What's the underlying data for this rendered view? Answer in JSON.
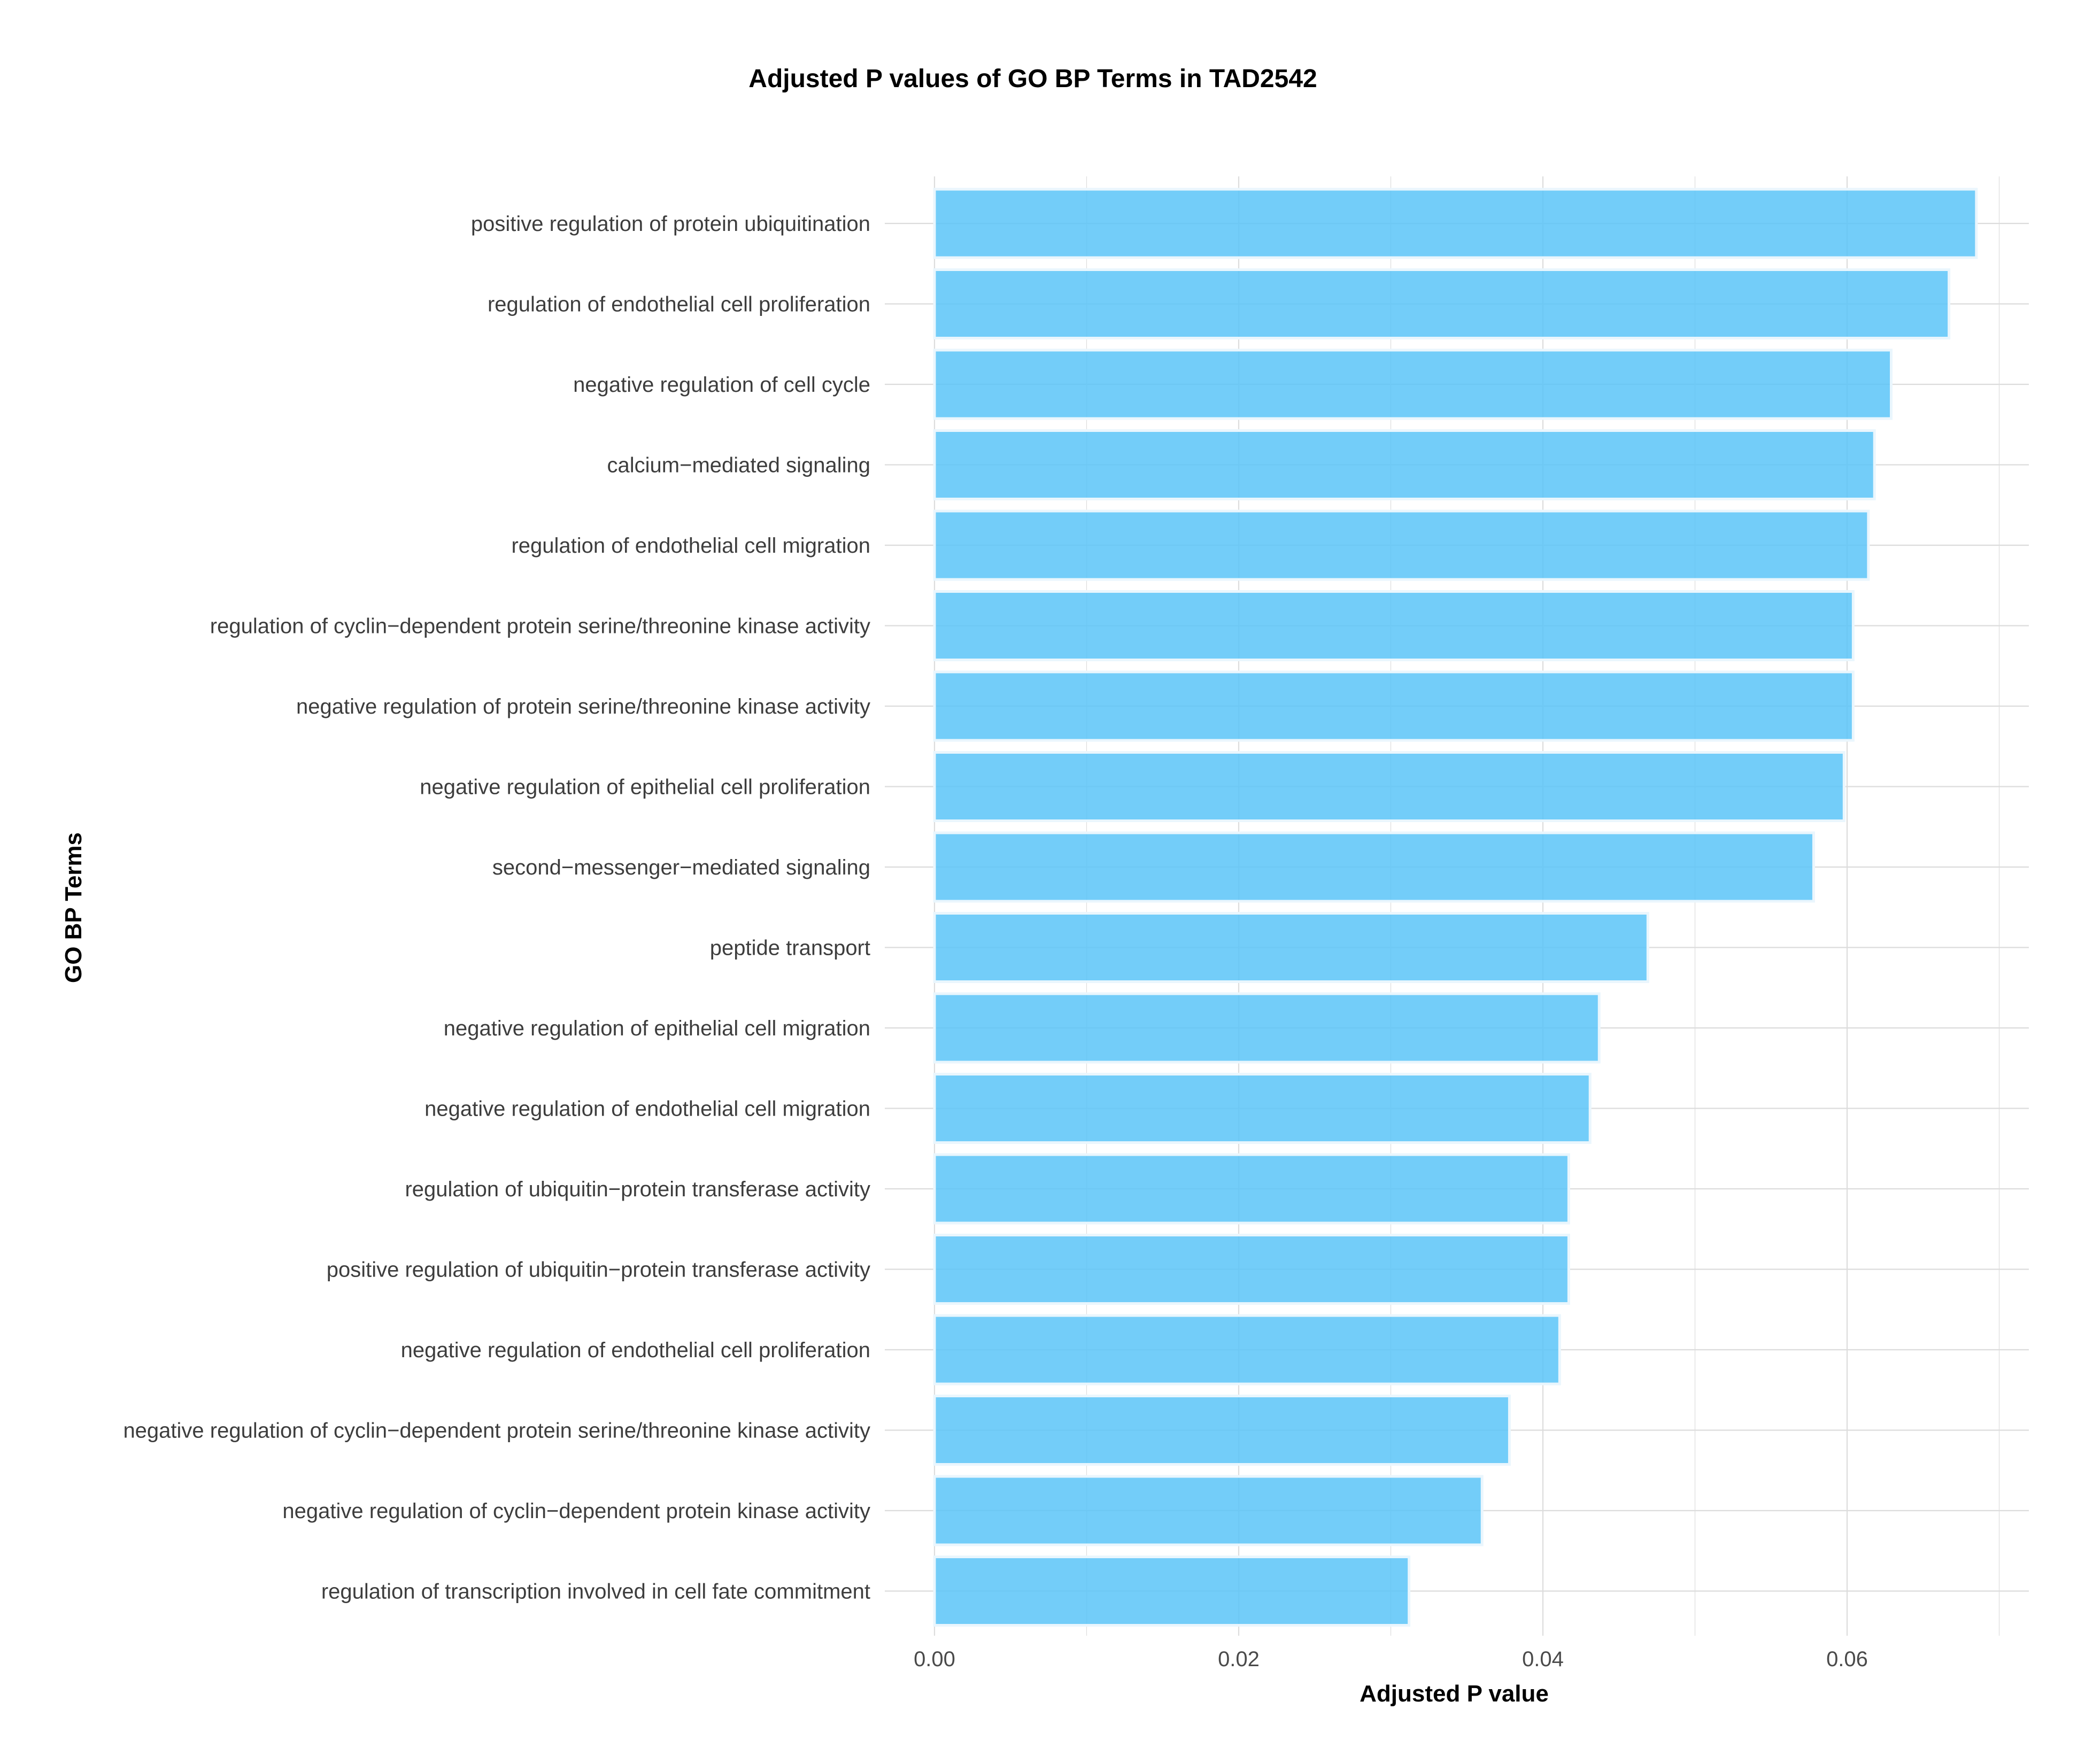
{
  "chart_data": {
    "type": "bar",
    "orientation": "horizontal",
    "title": "Adjusted P values of GO BP Terms in TAD2542",
    "xlabel": "Adjusted P value",
    "ylabel": "GO BP Terms",
    "xlim": [
      0,
      0.072
    ],
    "xticks": [
      0.0,
      0.02,
      0.04,
      0.06
    ],
    "xtick_labels": [
      "0.00",
      "0.02",
      "0.04",
      "0.06"
    ],
    "grid": true,
    "categories": [
      "positive regulation of protein ubiquitination",
      "regulation of endothelial cell proliferation",
      "negative regulation of cell cycle",
      "calcium−mediated signaling",
      "regulation of endothelial cell migration",
      "regulation of cyclin−dependent protein serine/threonine kinase activity",
      "negative regulation of protein serine/threonine kinase activity",
      "negative regulation of epithelial cell proliferation",
      "second−messenger−mediated signaling",
      "peptide transport",
      "negative regulation of epithelial cell migration",
      "negative regulation of endothelial cell migration",
      "regulation of ubiquitin−protein transferase activity",
      "positive regulation of ubiquitin−protein transferase activity",
      "negative regulation of endothelial cell proliferation",
      "negative regulation of cyclin−dependent protein serine/threonine kinase activity",
      "negative regulation of cyclin−dependent protein kinase activity",
      "regulation of transcription involved in cell fate commitment"
    ],
    "values": [
      0.0685,
      0.0667,
      0.0629,
      0.0618,
      0.0614,
      0.0604,
      0.0604,
      0.0598,
      0.0578,
      0.0469,
      0.0437,
      0.0431,
      0.0417,
      0.0417,
      0.0411,
      0.0378,
      0.036,
      0.0312
    ],
    "bar_color": "#5bc4f8",
    "bar_edge_color": "#eaf6fd",
    "grid_color": "#dcdcdc"
  }
}
